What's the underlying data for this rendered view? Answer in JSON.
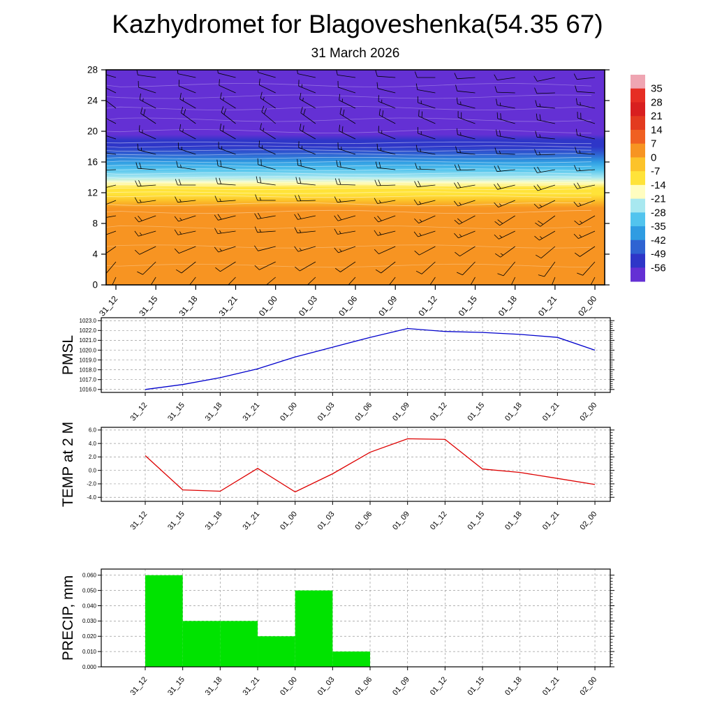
{
  "title": "Kazhydromet for Blagoveshenka(54.35 67)",
  "subtitle": "31 March 2026",
  "times": [
    "31_12",
    "31_15",
    "31_18",
    "31_21",
    "01_00",
    "01_03",
    "01_06",
    "01_09",
    "01_12",
    "01_15",
    "01_18",
    "01_21",
    "02_00"
  ],
  "chart_data": [
    {
      "type": "heatmap",
      "name": "upper-air-temperature-section",
      "x_labels": [
        "31_12",
        "31_15",
        "31_18",
        "31_21",
        "01_00",
        "01_03",
        "01_06",
        "01_09",
        "01_12",
        "01_15",
        "01_18",
        "01_21",
        "02_00"
      ],
      "y_ticks": [
        0,
        4,
        8,
        12,
        16,
        20,
        24,
        28
      ],
      "y_tick_labels": [
        "0",
        "4",
        "8",
        "12",
        "16",
        "20",
        "24",
        "28"
      ],
      "ylim": [
        0,
        28
      ],
      "colorbar_values": [
        35,
        28,
        21,
        14,
        7,
        0,
        -7,
        -14,
        -21,
        -28,
        -35,
        -42,
        -49,
        -56
      ],
      "colorbar_colors": [
        "#efa5b2",
        "#e62e24",
        "#d81f1f",
        "#e33b1f",
        "#f06022",
        "#f79422",
        "#fcc32a",
        "#ffe339",
        "#fffdc0",
        "#a8e8f0",
        "#52c4ee",
        "#2f9ce2",
        "#2f63d2",
        "#2e36c8",
        "#6430d4"
      ],
      "profile": [
        [
          0,
          5
        ],
        [
          8,
          3
        ],
        [
          10,
          1
        ],
        [
          11,
          -2
        ],
        [
          11.8,
          -8
        ],
        [
          12.6,
          -12
        ],
        [
          13.3,
          -16
        ],
        [
          14,
          -22
        ],
        [
          15,
          -29
        ],
        [
          16,
          -36
        ],
        [
          17,
          -43
        ],
        [
          18,
          -50
        ],
        [
          18.8,
          -53
        ],
        [
          19.6,
          -58
        ],
        [
          28,
          -60
        ]
      ],
      "barb_levels": [
        1,
        3,
        5,
        7,
        9,
        11,
        13,
        15,
        17,
        19,
        21,
        23,
        25,
        27
      ],
      "barbs": [
        [
          [
            205,
            8
          ],
          [
            220,
            10
          ],
          [
            235,
            12
          ],
          [
            250,
            15
          ],
          [
            260,
            18
          ],
          [
            248,
            15
          ],
          [
            256,
            20
          ],
          [
            268,
            22
          ],
          [
            278,
            18
          ],
          [
            288,
            15
          ],
          [
            298,
            20
          ],
          [
            308,
            17
          ],
          [
            296,
            14
          ],
          [
            286,
            12
          ]
        ],
        [
          [
            212,
            10
          ],
          [
            226,
            12
          ],
          [
            244,
            14
          ],
          [
            254,
            17
          ],
          [
            250,
            20
          ],
          [
            262,
            18
          ],
          [
            266,
            22
          ],
          [
            274,
            20
          ],
          [
            284,
            17
          ],
          [
            294,
            19
          ],
          [
            304,
            21
          ],
          [
            298,
            16
          ],
          [
            288,
            13
          ],
          [
            278,
            11
          ]
        ],
        [
          [
            218,
            9
          ],
          [
            232,
            11
          ],
          [
            248,
            13
          ],
          [
            258,
            16
          ],
          [
            252,
            19
          ],
          [
            264,
            17
          ],
          [
            270,
            21
          ],
          [
            278,
            19
          ],
          [
            288,
            16
          ],
          [
            298,
            18
          ],
          [
            306,
            20
          ],
          [
            300,
            15
          ],
          [
            292,
            12
          ],
          [
            282,
            10
          ]
        ],
        [
          [
            224,
            11
          ],
          [
            238,
            13
          ],
          [
            252,
            15
          ],
          [
            262,
            18
          ],
          [
            256,
            21
          ],
          [
            266,
            19
          ],
          [
            274,
            23
          ],
          [
            282,
            21
          ],
          [
            290,
            18
          ],
          [
            300,
            20
          ],
          [
            308,
            22
          ],
          [
            302,
            17
          ],
          [
            294,
            14
          ],
          [
            284,
            12
          ]
        ],
        [
          [
            230,
            10
          ],
          [
            244,
            12
          ],
          [
            256,
            14
          ],
          [
            266,
            17
          ],
          [
            260,
            20
          ],
          [
            270,
            18
          ],
          [
            278,
            22
          ],
          [
            286,
            20
          ],
          [
            294,
            17
          ],
          [
            302,
            19
          ],
          [
            310,
            21
          ],
          [
            304,
            16
          ],
          [
            296,
            13
          ],
          [
            286,
            11
          ]
        ],
        [
          [
            226,
            12
          ],
          [
            240,
            14
          ],
          [
            254,
            16
          ],
          [
            264,
            19
          ],
          [
            258,
            22
          ],
          [
            268,
            20
          ],
          [
            276,
            24
          ],
          [
            284,
            22
          ],
          [
            292,
            19
          ],
          [
            300,
            21
          ],
          [
            306,
            23
          ],
          [
            300,
            18
          ],
          [
            292,
            15
          ],
          [
            282,
            13
          ]
        ],
        [
          [
            222,
            11
          ],
          [
            236,
            13
          ],
          [
            250,
            15
          ],
          [
            260,
            18
          ],
          [
            254,
            21
          ],
          [
            264,
            19
          ],
          [
            272,
            23
          ],
          [
            280,
            21
          ],
          [
            288,
            18
          ],
          [
            296,
            20
          ],
          [
            302,
            22
          ],
          [
            296,
            17
          ],
          [
            288,
            14
          ],
          [
            278,
            12
          ]
        ],
        [
          [
            218,
            10
          ],
          [
            232,
            12
          ],
          [
            246,
            14
          ],
          [
            256,
            17
          ],
          [
            250,
            20
          ],
          [
            260,
            18
          ],
          [
            268,
            22
          ],
          [
            276,
            20
          ],
          [
            284,
            17
          ],
          [
            292,
            19
          ],
          [
            298,
            21
          ],
          [
            292,
            16
          ],
          [
            284,
            13
          ],
          [
            274,
            11
          ]
        ],
        [
          [
            214,
            9
          ],
          [
            228,
            11
          ],
          [
            242,
            13
          ],
          [
            252,
            16
          ],
          [
            246,
            19
          ],
          [
            256,
            17
          ],
          [
            264,
            21
          ],
          [
            272,
            19
          ],
          [
            280,
            16
          ],
          [
            288,
            18
          ],
          [
            294,
            20
          ],
          [
            288,
            15
          ],
          [
            280,
            12
          ],
          [
            270,
            10
          ]
        ],
        [
          [
            210,
            10
          ],
          [
            224,
            12
          ],
          [
            238,
            14
          ],
          [
            248,
            17
          ],
          [
            242,
            20
          ],
          [
            252,
            18
          ],
          [
            260,
            22
          ],
          [
            268,
            20
          ],
          [
            276,
            17
          ],
          [
            284,
            19
          ],
          [
            290,
            21
          ],
          [
            284,
            16
          ],
          [
            276,
            13
          ],
          [
            266,
            11
          ]
        ],
        [
          [
            206,
            11
          ],
          [
            220,
            13
          ],
          [
            234,
            15
          ],
          [
            244,
            18
          ],
          [
            238,
            21
          ],
          [
            248,
            19
          ],
          [
            256,
            23
          ],
          [
            264,
            21
          ],
          [
            272,
            18
          ],
          [
            280,
            20
          ],
          [
            286,
            22
          ],
          [
            280,
            17
          ],
          [
            272,
            14
          ],
          [
            262,
            12
          ]
        ],
        [
          [
            202,
            10
          ],
          [
            216,
            12
          ],
          [
            230,
            14
          ],
          [
            240,
            17
          ],
          [
            234,
            20
          ],
          [
            244,
            18
          ],
          [
            252,
            22
          ],
          [
            260,
            20
          ],
          [
            268,
            17
          ],
          [
            276,
            19
          ],
          [
            282,
            21
          ],
          [
            276,
            16
          ],
          [
            268,
            13
          ],
          [
            258,
            11
          ]
        ],
        [
          [
            208,
            9
          ],
          [
            222,
            11
          ],
          [
            236,
            13
          ],
          [
            246,
            16
          ],
          [
            240,
            19
          ],
          [
            250,
            17
          ],
          [
            258,
            21
          ],
          [
            266,
            19
          ],
          [
            274,
            16
          ],
          [
            282,
            18
          ],
          [
            288,
            20
          ],
          [
            282,
            15
          ],
          [
            274,
            12
          ],
          [
            264,
            10
          ]
        ]
      ]
    },
    {
      "type": "line",
      "name": "pmsl",
      "ylabel": "PMSL",
      "color": "#0000cc",
      "categories": [
        "31_12",
        "31_15",
        "31_18",
        "31_21",
        "01_00",
        "01_03",
        "01_06",
        "01_09",
        "01_12",
        "01_15",
        "01_18",
        "01_21",
        "02_00"
      ],
      "values": [
        1016.0,
        1016.5,
        1017.2,
        1018.1,
        1019.3,
        1020.3,
        1021.3,
        1022.2,
        1021.9,
        1021.8,
        1021.6,
        1021.3,
        1020.0
      ],
      "y_ticks": [
        1016,
        1017,
        1018,
        1019,
        1020,
        1021,
        1022,
        1023
      ],
      "y_tick_labels": [
        "1016.0",
        "1017.0",
        "1018.0",
        "1019.0",
        "1020.0",
        "1021.0",
        "1022.0",
        "1023.0"
      ],
      "ylim": [
        1015.7,
        1023.3
      ]
    },
    {
      "type": "line",
      "name": "temp-2m",
      "ylabel": "TEMP at 2 M",
      "color": "#dd0000",
      "categories": [
        "31_12",
        "31_15",
        "31_18",
        "31_21",
        "01_00",
        "01_03",
        "01_06",
        "01_09",
        "01_12",
        "01_15",
        "01_18",
        "01_21",
        "02_00"
      ],
      "values": [
        2.2,
        -2.9,
        -3.1,
        0.3,
        -3.2,
        -0.5,
        2.7,
        4.7,
        4.6,
        0.2,
        -0.3,
        -1.2,
        -2.1
      ],
      "y_ticks": [
        -4,
        -2,
        0,
        2,
        4,
        6
      ],
      "y_tick_labels": [
        "-4.0",
        "-2.0",
        "0.0",
        "2.0",
        "4.0",
        "6.0"
      ],
      "ylim": [
        -4.6,
        6.4
      ]
    },
    {
      "type": "bar",
      "name": "precip",
      "ylabel": "PRECIP, mm",
      "color": "#00e300",
      "categories": [
        "31_12",
        "31_15",
        "31_18",
        "31_21",
        "01_00",
        "01_03",
        "01_06",
        "01_09",
        "01_12",
        "01_15",
        "01_18",
        "01_21",
        "02_00"
      ],
      "values": [
        0,
        0.06,
        0.03,
        0.03,
        0.02,
        0.05,
        0.01,
        0,
        0,
        0,
        0,
        0,
        0
      ],
      "y_ticks": [
        0,
        0.01,
        0.02,
        0.03,
        0.04,
        0.05,
        0.06
      ],
      "y_tick_labels": [
        "0.000",
        "0.010",
        "0.020",
        "0.030",
        "0.040",
        "0.050",
        "0.060"
      ],
      "ylim": [
        0,
        0.064
      ]
    }
  ]
}
